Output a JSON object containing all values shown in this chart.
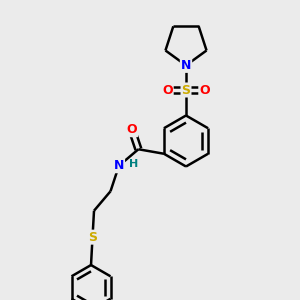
{
  "bg_color": "#ebebeb",
  "atom_colors": {
    "C": "#000000",
    "N": "#0000ff",
    "O": "#ff0000",
    "S": "#ccaa00",
    "H": "#008080"
  },
  "bond_color": "#000000",
  "bond_width": 1.8,
  "figsize": [
    3.0,
    3.0
  ],
  "dpi": 100,
  "xlim": [
    0,
    10
  ],
  "ylim": [
    0,
    10
  ]
}
